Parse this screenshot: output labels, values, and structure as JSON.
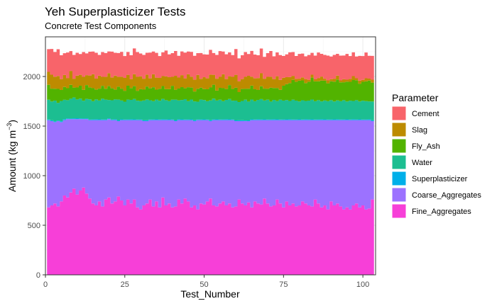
{
  "chart_data": {
    "type": "area",
    "title": "Yeh Superplasticizer Tests",
    "subtitle": "Concrete Test Components",
    "xlabel": "Test_Number",
    "ylabel": "Amount (kg m",
    "ylabel_sup": "−3",
    "ylabel_tail": ")",
    "xlim": [
      0,
      104
    ],
    "ylim": [
      0,
      2400
    ],
    "x_ticks": [
      0,
      25,
      50,
      75,
      100
    ],
    "y_ticks": [
      0,
      500,
      1000,
      1500,
      2000
    ],
    "grid": true,
    "legend_title": "Parameter",
    "legend_position": "right",
    "x": [
      1,
      2,
      3,
      4,
      5,
      6,
      7,
      8,
      9,
      10,
      11,
      12,
      13,
      14,
      15,
      16,
      17,
      18,
      19,
      20,
      21,
      22,
      23,
      24,
      25,
      26,
      27,
      28,
      29,
      30,
      31,
      32,
      33,
      34,
      35,
      36,
      37,
      38,
      39,
      40,
      41,
      42,
      43,
      44,
      45,
      46,
      47,
      48,
      49,
      50,
      51,
      52,
      53,
      54,
      55,
      56,
      57,
      58,
      59,
      60,
      61,
      62,
      63,
      64,
      65,
      66,
      67,
      68,
      69,
      70,
      71,
      72,
      73,
      74,
      75,
      76,
      77,
      78,
      79,
      80,
      81,
      82,
      83,
      84,
      85,
      86,
      87,
      88,
      89,
      90,
      91,
      92,
      93,
      94,
      95,
      96,
      97,
      98,
      99,
      100,
      101,
      102,
      103
    ],
    "series": [
      {
        "name": "Fine_Aggregates",
        "color": "#F73FD8",
        "values": [
          680,
          700,
          720,
          690,
          740,
          800,
          780,
          830,
          870,
          810,
          850,
          880,
          820,
          770,
          720,
          700,
          740,
          690,
          760,
          780,
          720,
          740,
          790,
          750,
          700,
          760,
          720,
          760,
          680,
          660,
          700,
          720,
          760,
          690,
          740,
          680,
          780,
          700,
          720,
          680,
          690,
          760,
          720,
          770,
          740,
          680,
          700,
          660,
          720,
          710,
          740,
          770,
          700,
          690,
          720,
          740,
          700,
          720,
          680,
          690,
          760,
          720,
          700,
          730,
          680,
          740,
          720,
          710,
          770,
          720,
          690,
          700,
          760,
          720,
          680,
          740,
          700,
          720,
          690,
          700,
          740,
          720,
          700,
          690,
          760,
          720,
          680,
          700,
          660,
          740,
          700,
          720,
          690,
          660,
          680,
          660,
          700,
          720,
          680,
          700,
          660,
          670,
          760
        ]
      },
      {
        "name": "Coarse_Aggregates",
        "color": "#9C72FF",
        "values": [
          880,
          850,
          820,
          860,
          800,
          760,
          790,
          740,
          700,
          760,
          720,
          690,
          750,
          790,
          840,
          860,
          820,
          870,
          800,
          790,
          840,
          820,
          760,
          810,
          860,
          800,
          840,
          800,
          880,
          900,
          850,
          830,
          800,
          870,
          820,
          880,
          780,
          860,
          840,
          880,
          860,
          800,
          840,
          790,
          820,
          880,
          850,
          900,
          840,
          850,
          820,
          780,
          860,
          870,
          840,
          820,
          860,
          840,
          880,
          860,
          790,
          830,
          850,
          820,
          880,
          820,
          840,
          850,
          790,
          840,
          870,
          860,
          800,
          840,
          880,
          820,
          860,
          840,
          870,
          860,
          820,
          840,
          860,
          870,
          800,
          840,
          880,
          860,
          900,
          820,
          860,
          840,
          870,
          900,
          880,
          900,
          860,
          840,
          880,
          860,
          900,
          890,
          790
        ]
      },
      {
        "name": "Superplasticizer",
        "color": "#00AFE9",
        "values": [
          6,
          8,
          7,
          5,
          9,
          10,
          7,
          6,
          8,
          9,
          7,
          6,
          8,
          5,
          7,
          9,
          8,
          6,
          7,
          8,
          6,
          9,
          7,
          8,
          6,
          7,
          9,
          8,
          6,
          7,
          8,
          9,
          6,
          7,
          8,
          6,
          9,
          7,
          8,
          6,
          7,
          9,
          8,
          6,
          7,
          8,
          9,
          6,
          7,
          8,
          6,
          9,
          7,
          8,
          6,
          7,
          9,
          8,
          6,
          7,
          8,
          9,
          6,
          7,
          8,
          6,
          9,
          7,
          8,
          6,
          7,
          9,
          8,
          6,
          7,
          8,
          9,
          6,
          7,
          8,
          6,
          9,
          7,
          8,
          6,
          7,
          9,
          8,
          6,
          7,
          8,
          9,
          6,
          7,
          8,
          6,
          9,
          7,
          8,
          6,
          7,
          9,
          8
        ]
      },
      {
        "name": "Water",
        "color": "#1CBE91",
        "values": [
          200,
          190,
          210,
          180,
          205,
          195,
          185,
          200,
          210,
          190,
          200,
          180,
          195,
          205,
          185,
          200,
          190,
          210,
          200,
          185,
          195,
          200,
          210,
          190,
          180,
          200,
          195,
          205,
          190,
          185,
          200,
          210,
          195,
          185,
          200,
          190,
          205,
          195,
          185,
          200,
          210,
          190,
          195,
          205,
          185,
          200,
          190,
          180,
          200,
          195,
          185,
          200,
          210,
          190,
          200,
          185,
          195,
          205,
          190,
          200,
          185,
          195,
          210,
          190,
          200,
          185,
          195,
          205,
          190,
          200,
          180,
          195,
          185,
          200,
          190,
          195,
          185,
          200,
          190,
          180,
          195,
          185,
          190,
          200,
          185,
          195,
          180,
          190,
          185,
          195,
          180,
          190,
          185,
          195,
          180,
          190,
          185,
          195,
          180,
          190,
          185,
          180,
          190
        ]
      },
      {
        "name": "Fly_Ash",
        "color": "#52B300",
        "values": [
          150,
          130,
          120,
          140,
          110,
          130,
          120,
          140,
          100,
          120,
          130,
          110,
          140,
          120,
          130,
          100,
          120,
          130,
          110,
          140,
          120,
          100,
          130,
          120,
          110,
          140,
          120,
          130,
          100,
          120,
          110,
          130,
          120,
          140,
          100,
          120,
          130,
          110,
          120,
          140,
          100,
          120,
          130,
          110,
          140,
          120,
          100,
          130,
          120,
          110,
          120,
          130,
          140,
          100,
          120,
          130,
          110,
          140,
          120,
          130,
          100,
          120,
          110,
          130,
          140,
          120,
          100,
          130,
          120,
          110,
          140,
          120,
          130,
          100,
          150,
          160,
          180,
          200,
          190,
          210,
          200,
          180,
          190,
          220,
          200,
          190,
          210,
          200,
          180,
          190,
          200,
          210,
          190,
          180,
          200,
          190,
          210,
          200,
          180,
          190,
          200,
          210,
          190
        ]
      },
      {
        "name": "Slag",
        "color": "#BD8B00",
        "values": [
          130,
          140,
          120,
          130,
          110,
          120,
          100,
          140,
          90,
          120,
          110,
          130,
          100,
          120,
          140,
          110,
          130,
          90,
          120,
          130,
          110,
          140,
          100,
          120,
          130,
          110,
          90,
          120,
          140,
          130,
          110,
          120,
          100,
          130,
          120,
          110,
          100,
          130,
          120,
          90,
          140,
          110,
          120,
          100,
          130,
          110,
          120,
          140,
          90,
          120,
          110,
          130,
          100,
          120,
          110,
          140,
          100,
          90,
          120,
          130,
          110,
          100,
          120,
          130,
          90,
          110,
          120,
          130,
          100,
          120,
          110,
          90,
          120,
          100,
          80,
          70,
          60,
          40,
          30,
          20,
          30,
          40,
          20,
          30,
          20,
          30,
          40,
          20,
          30,
          20,
          30,
          40,
          20,
          30,
          20,
          30,
          40,
          20,
          30,
          20,
          30,
          20,
          30
        ]
      },
      {
        "name": "Cement",
        "color": "#F8646A",
        "values": [
          230,
          260,
          250,
          270,
          240,
          220,
          260,
          200,
          240,
          230,
          210,
          250,
          220,
          240,
          230,
          260,
          210,
          250,
          240,
          220,
          260,
          230,
          240,
          250,
          220,
          230,
          240,
          260,
          250,
          230,
          240,
          220,
          260,
          230,
          250,
          220,
          240,
          260,
          230,
          240,
          250,
          220,
          240,
          260,
          230,
          250,
          240,
          220,
          260,
          230,
          240,
          250,
          220,
          240,
          260,
          230,
          250,
          240,
          220,
          260,
          230,
          240,
          250,
          220,
          260,
          240,
          230,
          250,
          220,
          240,
          260,
          230,
          240,
          250,
          220,
          230,
          250,
          240,
          230,
          250,
          240,
          230,
          250,
          220,
          240,
          260,
          230,
          240,
          250,
          230,
          240,
          220,
          250,
          240,
          260,
          230,
          240,
          220,
          250,
          240,
          260,
          230,
          240
        ]
      }
    ]
  }
}
